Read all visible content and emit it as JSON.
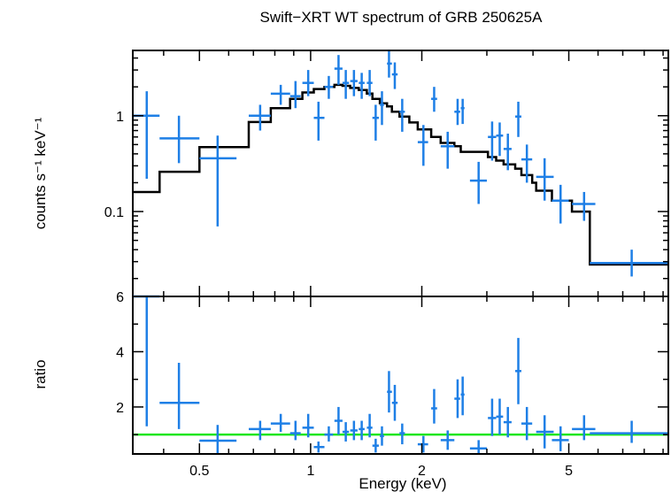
{
  "chart_data": [
    {
      "type": "scatter",
      "panel": "spectrum",
      "title": "Swift−XRT WT spectrum of GRB 250625A",
      "xlabel": "Energy (keV)",
      "ylabel": "counts s⁻¹ keV⁻¹",
      "x_scale": "log",
      "y_scale": "log",
      "xlim": [
        0.33,
        9.3
      ],
      "ylim": [
        0.013,
        4.8
      ],
      "yticks": [
        0.1,
        1
      ],
      "yticklabels": [
        "0.1",
        "1"
      ],
      "colors": {
        "data": "#1e7fe6",
        "model": "#000000"
      },
      "series": [
        {
          "kind": "data",
          "points": [
            {
              "x": 0.36,
              "xlo": 0.33,
              "xhi": 0.39,
              "y": 1.0,
              "ylo": 0.22,
              "yhi": 1.8
            },
            {
              "x": 0.44,
              "xlo": 0.39,
              "xhi": 0.5,
              "y": 0.58,
              "ylo": 0.32,
              "yhi": 1.0
            },
            {
              "x": 0.56,
              "xlo": 0.5,
              "xhi": 0.63,
              "y": 0.36,
              "ylo": 0.07,
              "yhi": 0.62
            },
            {
              "x": 0.73,
              "xlo": 0.68,
              "xhi": 0.78,
              "y": 1.0,
              "ylo": 0.7,
              "yhi": 1.3
            },
            {
              "x": 0.83,
              "xlo": 0.78,
              "xhi": 0.88,
              "y": 1.7,
              "ylo": 1.3,
              "yhi": 2.1
            },
            {
              "x": 0.91,
              "xlo": 0.88,
              "xhi": 0.94,
              "y": 1.6,
              "ylo": 1.2,
              "yhi": 2.3
            },
            {
              "x": 0.985,
              "xlo": 0.95,
              "xhi": 1.02,
              "y": 2.2,
              "ylo": 1.6,
              "yhi": 3.0
            },
            {
              "x": 1.05,
              "xlo": 1.02,
              "xhi": 1.09,
              "y": 0.95,
              "ylo": 0.55,
              "yhi": 1.4
            },
            {
              "x": 1.12,
              "xlo": 1.09,
              "xhi": 1.15,
              "y": 2.0,
              "ylo": 1.5,
              "yhi": 2.6
            },
            {
              "x": 1.19,
              "xlo": 1.16,
              "xhi": 1.22,
              "y": 3.1,
              "ylo": 2.1,
              "yhi": 4.3
            },
            {
              "x": 1.245,
              "xlo": 1.22,
              "xhi": 1.27,
              "y": 2.2,
              "ylo": 1.5,
              "yhi": 3.0
            },
            {
              "x": 1.31,
              "xlo": 1.28,
              "xhi": 1.34,
              "y": 2.3,
              "ylo": 1.6,
              "yhi": 3.0
            },
            {
              "x": 1.375,
              "xlo": 1.35,
              "xhi": 1.4,
              "y": 2.2,
              "ylo": 1.5,
              "yhi": 2.8
            },
            {
              "x": 1.445,
              "xlo": 1.42,
              "xhi": 1.47,
              "y": 2.2,
              "ylo": 1.6,
              "yhi": 3.0
            },
            {
              "x": 1.5,
              "xlo": 1.47,
              "xhi": 1.53,
              "y": 0.95,
              "ylo": 0.55,
              "yhi": 1.3
            },
            {
              "x": 1.56,
              "xlo": 1.54,
              "xhi": 1.58,
              "y": 1.3,
              "ylo": 0.8,
              "yhi": 1.8
            },
            {
              "x": 1.63,
              "xlo": 1.61,
              "xhi": 1.66,
              "y": 3.5,
              "ylo": 2.5,
              "yhi": 4.8
            },
            {
              "x": 1.69,
              "xlo": 1.66,
              "xhi": 1.72,
              "y": 2.7,
              "ylo": 1.9,
              "yhi": 3.6
            },
            {
              "x": 1.77,
              "xlo": 1.74,
              "xhi": 1.8,
              "y": 1.1,
              "ylo": 0.68,
              "yhi": 1.5
            },
            {
              "x": 2.02,
              "xlo": 1.95,
              "xhi": 2.08,
              "y": 0.53,
              "ylo": 0.3,
              "yhi": 0.8
            },
            {
              "x": 2.16,
              "xlo": 2.12,
              "xhi": 2.2,
              "y": 1.5,
              "ylo": 1.1,
              "yhi": 2.0
            },
            {
              "x": 2.35,
              "xlo": 2.25,
              "xhi": 2.45,
              "y": 0.48,
              "ylo": 0.28,
              "yhi": 0.68
            },
            {
              "x": 2.5,
              "xlo": 2.45,
              "xhi": 2.54,
              "y": 1.1,
              "ylo": 0.8,
              "yhi": 1.5
            },
            {
              "x": 2.58,
              "xlo": 2.55,
              "xhi": 2.61,
              "y": 1.2,
              "ylo": 0.82,
              "yhi": 1.5
            },
            {
              "x": 2.85,
              "xlo": 2.7,
              "xhi": 3.0,
              "y": 0.21,
              "ylo": 0.12,
              "yhi": 0.33
            },
            {
              "x": 3.1,
              "xlo": 3.02,
              "xhi": 3.18,
              "y": 0.6,
              "ylo": 0.34,
              "yhi": 0.87
            },
            {
              "x": 3.25,
              "xlo": 3.18,
              "xhi": 3.32,
              "y": 0.62,
              "ylo": 0.38,
              "yhi": 0.85
            },
            {
              "x": 3.42,
              "xlo": 3.33,
              "xhi": 3.5,
              "y": 0.45,
              "ylo": 0.27,
              "yhi": 0.65
            },
            {
              "x": 3.65,
              "xlo": 3.58,
              "xhi": 3.72,
              "y": 0.98,
              "ylo": 0.6,
              "yhi": 1.4
            },
            {
              "x": 3.85,
              "xlo": 3.72,
              "xhi": 3.98,
              "y": 0.35,
              "ylo": 0.2,
              "yhi": 0.5
            },
            {
              "x": 4.3,
              "xlo": 4.08,
              "xhi": 4.55,
              "y": 0.23,
              "ylo": 0.13,
              "yhi": 0.36
            },
            {
              "x": 4.75,
              "xlo": 4.5,
              "xhi": 5.0,
              "y": 0.13,
              "ylo": 0.075,
              "yhi": 0.19
            },
            {
              "x": 5.5,
              "xlo": 5.1,
              "xhi": 5.9,
              "y": 0.12,
              "ylo": 0.08,
              "yhi": 0.16
            },
            {
              "x": 7.4,
              "xlo": 5.7,
              "xhi": 9.3,
              "y": 0.029,
              "ylo": 0.021,
              "yhi": 0.04
            }
          ]
        },
        {
          "kind": "model",
          "steps": [
            {
              "xlo": 0.33,
              "xhi": 0.39,
              "y": 0.16
            },
            {
              "xlo": 0.39,
              "xhi": 0.5,
              "y": 0.26
            },
            {
              "xlo": 0.5,
              "xhi": 0.68,
              "y": 0.47
            },
            {
              "xlo": 0.68,
              "xhi": 0.78,
              "y": 0.86
            },
            {
              "xlo": 0.78,
              "xhi": 0.88,
              "y": 1.2
            },
            {
              "xlo": 0.88,
              "xhi": 0.95,
              "y": 1.5
            },
            {
              "xlo": 0.95,
              "xhi": 1.02,
              "y": 1.75
            },
            {
              "xlo": 1.02,
              "xhi": 1.09,
              "y": 1.9
            },
            {
              "xlo": 1.09,
              "xhi": 1.16,
              "y": 2.0
            },
            {
              "xlo": 1.16,
              "xhi": 1.22,
              "y": 2.1
            },
            {
              "xlo": 1.22,
              "xhi": 1.28,
              "y": 2.05
            },
            {
              "xlo": 1.28,
              "xhi": 1.35,
              "y": 1.95
            },
            {
              "xlo": 1.35,
              "xhi": 1.42,
              "y": 1.85
            },
            {
              "xlo": 1.42,
              "xhi": 1.47,
              "y": 1.7
            },
            {
              "xlo": 1.47,
              "xhi": 1.54,
              "y": 1.5
            },
            {
              "xlo": 1.54,
              "xhi": 1.61,
              "y": 1.35
            },
            {
              "xlo": 1.61,
              "xhi": 1.66,
              "y": 1.25
            },
            {
              "xlo": 1.66,
              "xhi": 1.74,
              "y": 1.1
            },
            {
              "xlo": 1.74,
              "xhi": 1.85,
              "y": 0.98
            },
            {
              "xlo": 1.85,
              "xhi": 1.95,
              "y": 0.85
            },
            {
              "xlo": 1.95,
              "xhi": 2.12,
              "y": 0.72
            },
            {
              "xlo": 2.12,
              "xhi": 2.25,
              "y": 0.6
            },
            {
              "xlo": 2.25,
              "xhi": 2.45,
              "y": 0.52
            },
            {
              "xlo": 2.45,
              "xhi": 2.55,
              "y": 0.48
            },
            {
              "xlo": 2.55,
              "xhi": 3.02,
              "y": 0.42
            },
            {
              "xlo": 3.02,
              "xhi": 3.18,
              "y": 0.37
            },
            {
              "xlo": 3.18,
              "xhi": 3.33,
              "y": 0.34
            },
            {
              "xlo": 3.33,
              "xhi": 3.58,
              "y": 0.31
            },
            {
              "xlo": 3.58,
              "xhi": 3.72,
              "y": 0.28
            },
            {
              "xlo": 3.72,
              "xhi": 3.98,
              "y": 0.24
            },
            {
              "xlo": 3.98,
              "xhi": 4.08,
              "y": 0.2
            },
            {
              "xlo": 4.08,
              "xhi": 4.5,
              "y": 0.165
            },
            {
              "xlo": 4.5,
              "xhi": 5.1,
              "y": 0.13
            },
            {
              "xlo": 5.1,
              "xhi": 5.7,
              "y": 0.1
            },
            {
              "xlo": 5.7,
              "xhi": 9.3,
              "y": 0.028
            }
          ]
        }
      ]
    },
    {
      "type": "scatter",
      "panel": "ratio",
      "xlabel": "Energy (keV)",
      "ylabel": "ratio",
      "x_scale": "log",
      "y_scale": "linear",
      "xlim": [
        0.33,
        9.3
      ],
      "ylim": [
        0.3,
        6.0
      ],
      "xticks": [
        0.5,
        1,
        2,
        5
      ],
      "xticklabels": [
        "0.5",
        "1",
        "2",
        "5"
      ],
      "yticks": [
        2,
        4,
        6
      ],
      "yticklabels": [
        "2",
        "4",
        "6"
      ],
      "reference_line": 1,
      "colors": {
        "data": "#1e7fe6",
        "reference": "#1ee61e"
      },
      "series": [
        {
          "kind": "data",
          "points": [
            {
              "x": 0.36,
              "xlo": 0.33,
              "xhi": 0.39,
              "y": 6.0,
              "ylo": 1.3,
              "yhi": 6.0
            },
            {
              "x": 0.44,
              "xlo": 0.39,
              "xhi": 0.5,
              "y": 2.15,
              "ylo": 1.2,
              "yhi": 3.6
            },
            {
              "x": 0.56,
              "xlo": 0.5,
              "xhi": 0.63,
              "y": 0.78,
              "ylo": 0.3,
              "yhi": 1.35
            },
            {
              "x": 0.73,
              "xlo": 0.68,
              "xhi": 0.78,
              "y": 1.2,
              "ylo": 0.8,
              "yhi": 1.5
            },
            {
              "x": 0.83,
              "xlo": 0.78,
              "xhi": 0.88,
              "y": 1.4,
              "ylo": 1.1,
              "yhi": 1.75
            },
            {
              "x": 0.91,
              "xlo": 0.88,
              "xhi": 0.94,
              "y": 1.05,
              "ylo": 0.8,
              "yhi": 1.5
            },
            {
              "x": 0.985,
              "xlo": 0.95,
              "xhi": 1.02,
              "y": 1.25,
              "ylo": 0.9,
              "yhi": 1.75
            },
            {
              "x": 1.05,
              "xlo": 1.02,
              "xhi": 1.09,
              "y": 0.55,
              "ylo": 0.35,
              "yhi": 0.75
            },
            {
              "x": 1.12,
              "xlo": 1.09,
              "xhi": 1.15,
              "y": 1.0,
              "ylo": 0.75,
              "yhi": 1.3
            },
            {
              "x": 1.19,
              "xlo": 1.16,
              "xhi": 1.22,
              "y": 1.5,
              "ylo": 1.0,
              "yhi": 2.0
            },
            {
              "x": 1.245,
              "xlo": 1.22,
              "xhi": 1.27,
              "y": 1.1,
              "ylo": 0.75,
              "yhi": 1.45
            },
            {
              "x": 1.31,
              "xlo": 1.28,
              "xhi": 1.34,
              "y": 1.15,
              "ylo": 0.8,
              "yhi": 1.5
            },
            {
              "x": 1.375,
              "xlo": 1.35,
              "xhi": 1.4,
              "y": 1.2,
              "ylo": 0.8,
              "yhi": 1.5
            },
            {
              "x": 1.445,
              "xlo": 1.42,
              "xhi": 1.47,
              "y": 1.25,
              "ylo": 0.9,
              "yhi": 1.75
            },
            {
              "x": 1.5,
              "xlo": 1.47,
              "xhi": 1.53,
              "y": 0.6,
              "ylo": 0.35,
              "yhi": 0.85
            },
            {
              "x": 1.56,
              "xlo": 1.54,
              "xhi": 1.58,
              "y": 0.95,
              "ylo": 0.6,
              "yhi": 1.3
            },
            {
              "x": 1.63,
              "xlo": 1.61,
              "xhi": 1.66,
              "y": 2.55,
              "ylo": 1.8,
              "yhi": 3.3
            },
            {
              "x": 1.69,
              "xlo": 1.66,
              "xhi": 1.72,
              "y": 2.15,
              "ylo": 1.5,
              "yhi": 2.8
            },
            {
              "x": 1.77,
              "xlo": 1.74,
              "xhi": 1.8,
              "y": 1.05,
              "ylo": 0.65,
              "yhi": 1.4
            },
            {
              "x": 2.02,
              "xlo": 1.95,
              "xhi": 2.08,
              "y": 0.65,
              "ylo": 0.35,
              "yhi": 0.95
            },
            {
              "x": 2.16,
              "xlo": 2.12,
              "xhi": 2.2,
              "y": 1.95,
              "ylo": 1.4,
              "yhi": 2.65
            },
            {
              "x": 2.35,
              "xlo": 2.25,
              "xhi": 2.45,
              "y": 0.8,
              "ylo": 0.45,
              "yhi": 1.15
            },
            {
              "x": 2.5,
              "xlo": 2.45,
              "xhi": 2.54,
              "y": 2.3,
              "ylo": 1.6,
              "yhi": 3.0
            },
            {
              "x": 2.58,
              "xlo": 2.55,
              "xhi": 2.61,
              "y": 2.45,
              "ylo": 1.7,
              "yhi": 3.1
            },
            {
              "x": 2.85,
              "xlo": 2.7,
              "xhi": 3.0,
              "y": 0.5,
              "ylo": 0.3,
              "yhi": 0.8
            },
            {
              "x": 3.1,
              "xlo": 3.02,
              "xhi": 3.18,
              "y": 1.6,
              "ylo": 0.95,
              "yhi": 2.3
            },
            {
              "x": 3.25,
              "xlo": 3.18,
              "xhi": 3.32,
              "y": 1.65,
              "ylo": 1.0,
              "yhi": 2.3
            },
            {
              "x": 3.42,
              "xlo": 3.33,
              "xhi": 3.5,
              "y": 1.45,
              "ylo": 0.9,
              "yhi": 2.0
            },
            {
              "x": 3.65,
              "xlo": 3.58,
              "xhi": 3.72,
              "y": 3.3,
              "ylo": 2.1,
              "yhi": 4.5
            },
            {
              "x": 3.85,
              "xlo": 3.72,
              "xhi": 3.98,
              "y": 1.4,
              "ylo": 0.8,
              "yhi": 2.0
            },
            {
              "x": 4.3,
              "xlo": 4.08,
              "xhi": 4.55,
              "y": 1.1,
              "ylo": 0.5,
              "yhi": 1.7
            },
            {
              "x": 4.75,
              "xlo": 4.5,
              "xhi": 5.0,
              "y": 0.8,
              "ylo": 0.4,
              "yhi": 1.3
            },
            {
              "x": 5.5,
              "xlo": 5.1,
              "xhi": 5.9,
              "y": 1.2,
              "ylo": 0.8,
              "yhi": 1.7
            },
            {
              "x": 7.4,
              "xlo": 5.7,
              "xhi": 9.3,
              "y": 1.05,
              "ylo": 0.7,
              "yhi": 1.5
            }
          ]
        }
      ]
    }
  ]
}
